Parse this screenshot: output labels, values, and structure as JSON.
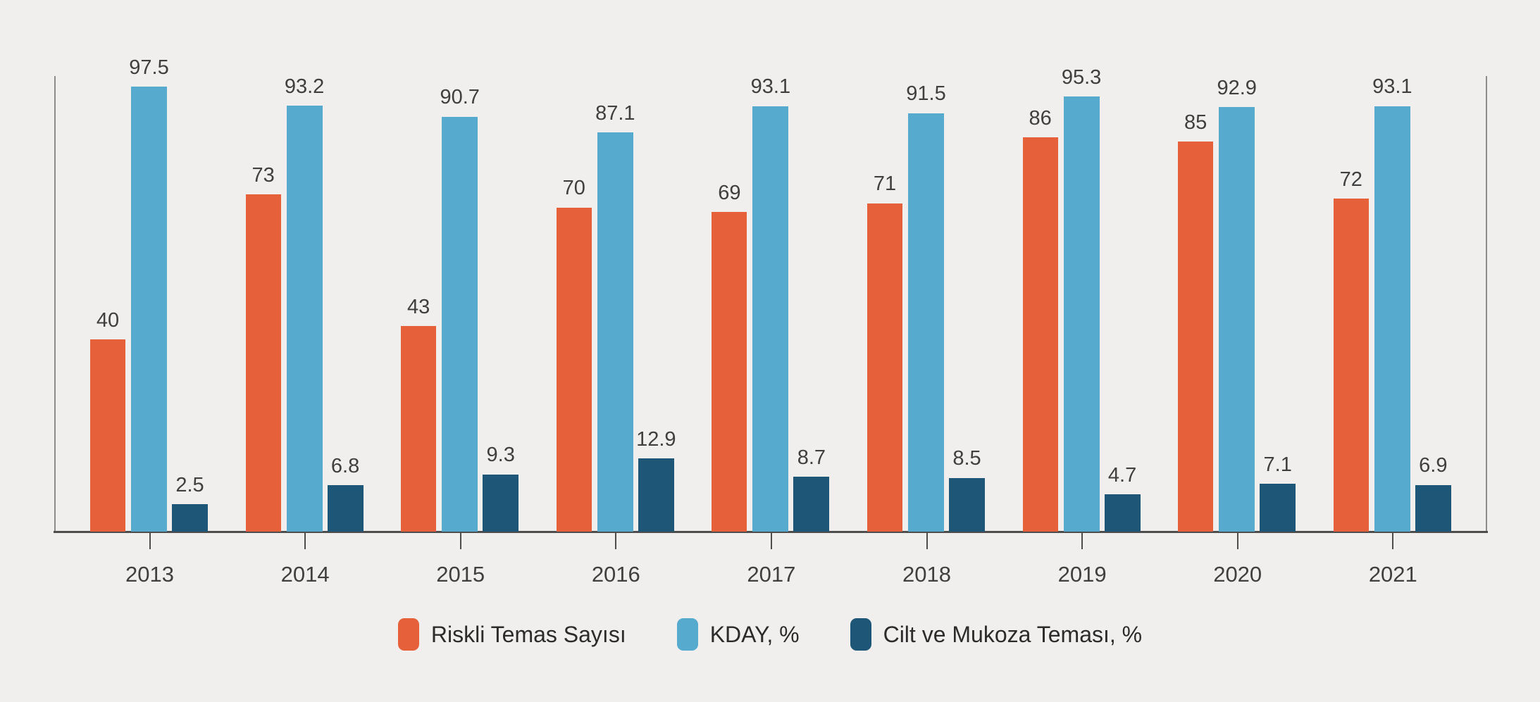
{
  "chart_data": {
    "type": "bar",
    "title": "",
    "categories": [
      "2013",
      "2014",
      "2015",
      "2016",
      "2017",
      "2018",
      "2019",
      "2020",
      "2021"
    ],
    "series": [
      {
        "name": "Riskli Temas Sayısı",
        "color": "#E6613A",
        "values": [
          40,
          73,
          43,
          70,
          69,
          71,
          86,
          85,
          72
        ]
      },
      {
        "name": "KDAY, %",
        "color": "#55AACD",
        "values": [
          97.5,
          93.2,
          90.7,
          87.1,
          93.1,
          91.5,
          95.3,
          92.9,
          93.1
        ]
      },
      {
        "name": "Cilt ve Mukoza Teması, %",
        "color": "#1D5677",
        "values": [
          2.5,
          6.8,
          9.3,
          12.9,
          8.7,
          8.5,
          4.7,
          7.1,
          6.9
        ]
      }
    ],
    "value_labels": true,
    "xlabel": "",
    "ylabel": "",
    "axis": {
      "y_axis_labels_visible": false,
      "gridlines": false,
      "y_min": -3.75,
      "y_max": 100
    },
    "legend_position": "bottom-center"
  },
  "colors": {
    "background": "#F0EFEE",
    "x_axis_line": "#4D4D4D",
    "plot_side_borders": "#8C8C8C",
    "label_text": "#3F3F3F",
    "legend_text": "#2B2B2B"
  }
}
